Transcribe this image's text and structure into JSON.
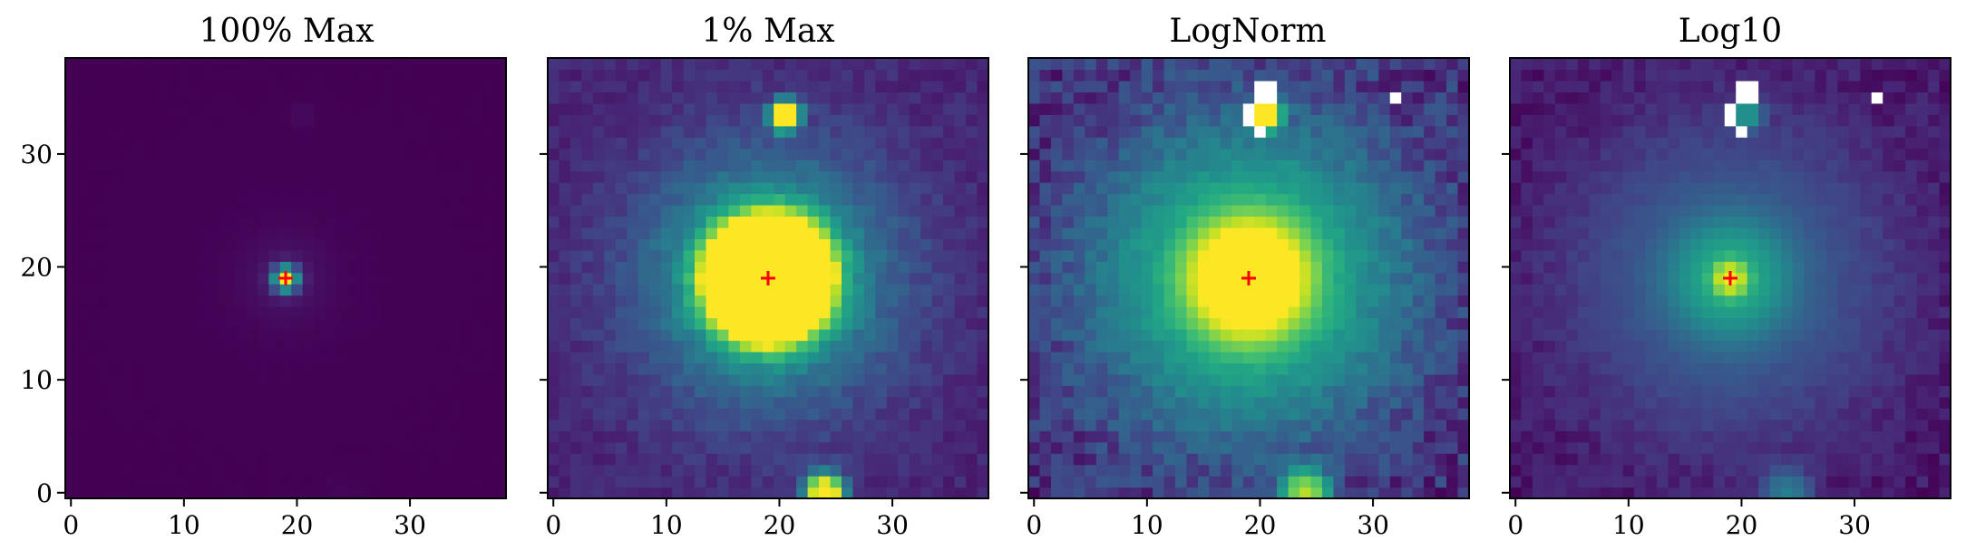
{
  "chart_data": [
    {
      "type": "heatmap",
      "title": "100% Max",
      "colormap": "viridis",
      "x_ticks": [
        "0",
        "10",
        "20",
        "30"
      ],
      "y_ticks": [
        "0",
        "10",
        "20",
        "30"
      ],
      "xlim": [
        -0.5,
        38.5
      ],
      "ylim": [
        -0.5,
        38.5
      ],
      "grid_size": [
        39,
        39
      ],
      "marker": {
        "x": 19,
        "y": 19,
        "symbol": "+",
        "color": "#ff0000"
      },
      "stretch": "linear, 100% of max",
      "sources": [
        {
          "x": 19,
          "y": 19,
          "peak": 1.0
        },
        {
          "x": 20.5,
          "y": 33.5,
          "peak": 0.03
        },
        {
          "x": 24,
          "y": 0,
          "peak": 0.012
        }
      ]
    },
    {
      "type": "heatmap",
      "title": "1% Max",
      "colormap": "viridis",
      "x_ticks": [
        "0",
        "10",
        "20",
        "30"
      ],
      "y_ticks": [
        "0",
        "10",
        "20",
        "30"
      ],
      "xlim": [
        -0.5,
        38.5
      ],
      "ylim": [
        -0.5,
        38.5
      ],
      "grid_size": [
        39,
        39
      ],
      "marker": {
        "x": 19,
        "y": 19,
        "symbol": "+",
        "color": "#ff0000"
      },
      "stretch": "linear, clipped at 1% of max",
      "sources": [
        {
          "x": 19,
          "y": 19,
          "peak": 1.0
        },
        {
          "x": 20.5,
          "y": 33.5,
          "peak": 0.03
        },
        {
          "x": 24,
          "y": 0,
          "peak": 0.012
        }
      ]
    },
    {
      "type": "heatmap",
      "title": "LogNorm",
      "colormap": "viridis",
      "x_ticks": [
        "0",
        "10",
        "20",
        "30"
      ],
      "y_ticks": [
        "0",
        "10",
        "20",
        "30"
      ],
      "xlim": [
        -0.5,
        38.5
      ],
      "ylim": [
        -0.5,
        38.5
      ],
      "grid_size": [
        39,
        39
      ],
      "marker": {
        "x": 19,
        "y": 19,
        "symbol": "+",
        "color": "#ff0000"
      },
      "stretch": "log",
      "masked_pixels_color": "#ffffff",
      "masked_pixels": [
        [
          20,
          36
        ],
        [
          21,
          36
        ],
        [
          20,
          35
        ],
        [
          21,
          35
        ],
        [
          19,
          34
        ],
        [
          19,
          33
        ],
        [
          20,
          32
        ],
        [
          32,
          35
        ]
      ],
      "sources": [
        {
          "x": 19,
          "y": 19,
          "peak": 1.0
        },
        {
          "x": 20.5,
          "y": 33.5,
          "peak": 0.03
        },
        {
          "x": 24,
          "y": 0,
          "peak": 0.012
        }
      ]
    },
    {
      "type": "heatmap",
      "title": "Log10",
      "colormap": "viridis",
      "x_ticks": [
        "0",
        "10",
        "20",
        "30"
      ],
      "y_ticks": [
        "0",
        "10",
        "20",
        "30"
      ],
      "xlim": [
        -0.5,
        38.5
      ],
      "ylim": [
        -0.5,
        38.5
      ],
      "grid_size": [
        39,
        39
      ],
      "marker": {
        "x": 19,
        "y": 19,
        "symbol": "+",
        "color": "#ff0000"
      },
      "stretch": "log10",
      "masked_pixels_color": "#ffffff",
      "masked_pixels": [
        [
          20,
          36
        ],
        [
          21,
          36
        ],
        [
          20,
          35
        ],
        [
          21,
          35
        ],
        [
          19,
          34
        ],
        [
          19,
          33
        ],
        [
          20,
          32
        ],
        [
          32,
          35
        ]
      ],
      "sources": [
        {
          "x": 19,
          "y": 19,
          "peak": 1.0
        },
        {
          "x": 20.5,
          "y": 33.5,
          "peak": 0.03
        },
        {
          "x": 24,
          "y": 0,
          "peak": 0.012
        }
      ]
    }
  ]
}
